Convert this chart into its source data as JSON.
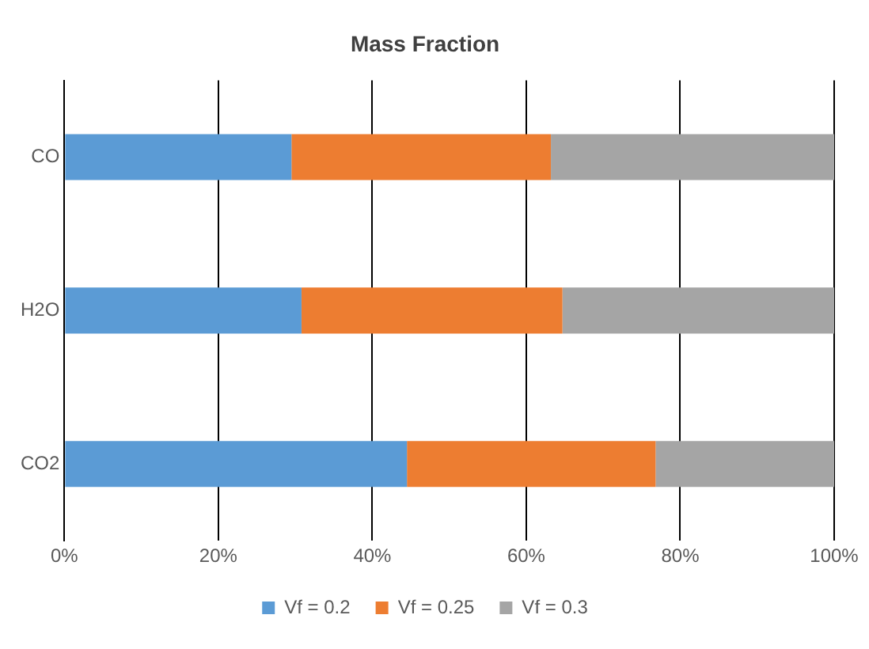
{
  "chart_data": {
    "type": "bar",
    "title": "Mass Fraction",
    "orientation": "horizontal",
    "stacked": true,
    "categories": [
      "CO",
      "H2O",
      "CO2"
    ],
    "series": [
      {
        "name": "Vf = 0.2",
        "color": "#5b9bd5",
        "values": [
          29.5,
          30.8,
          44.5
        ]
      },
      {
        "name": "Vf = 0.25",
        "color": "#ed7d31",
        "values": [
          33.7,
          33.9,
          32.3
        ]
      },
      {
        "name": "Vf = 0.3",
        "color": "#a5a5a5",
        "values": [
          36.8,
          35.3,
          23.2
        ]
      }
    ],
    "xlim": [
      0,
      100
    ],
    "xticks": [
      {
        "value": 0,
        "label": "0%"
      },
      {
        "value": 20,
        "label": "20%"
      },
      {
        "value": 40,
        "label": "40%"
      },
      {
        "value": 60,
        "label": "60%"
      },
      {
        "value": 80,
        "label": "80%"
      },
      {
        "value": 100,
        "label": "100%"
      }
    ],
    "grid": "x",
    "legend": "bottom"
  }
}
